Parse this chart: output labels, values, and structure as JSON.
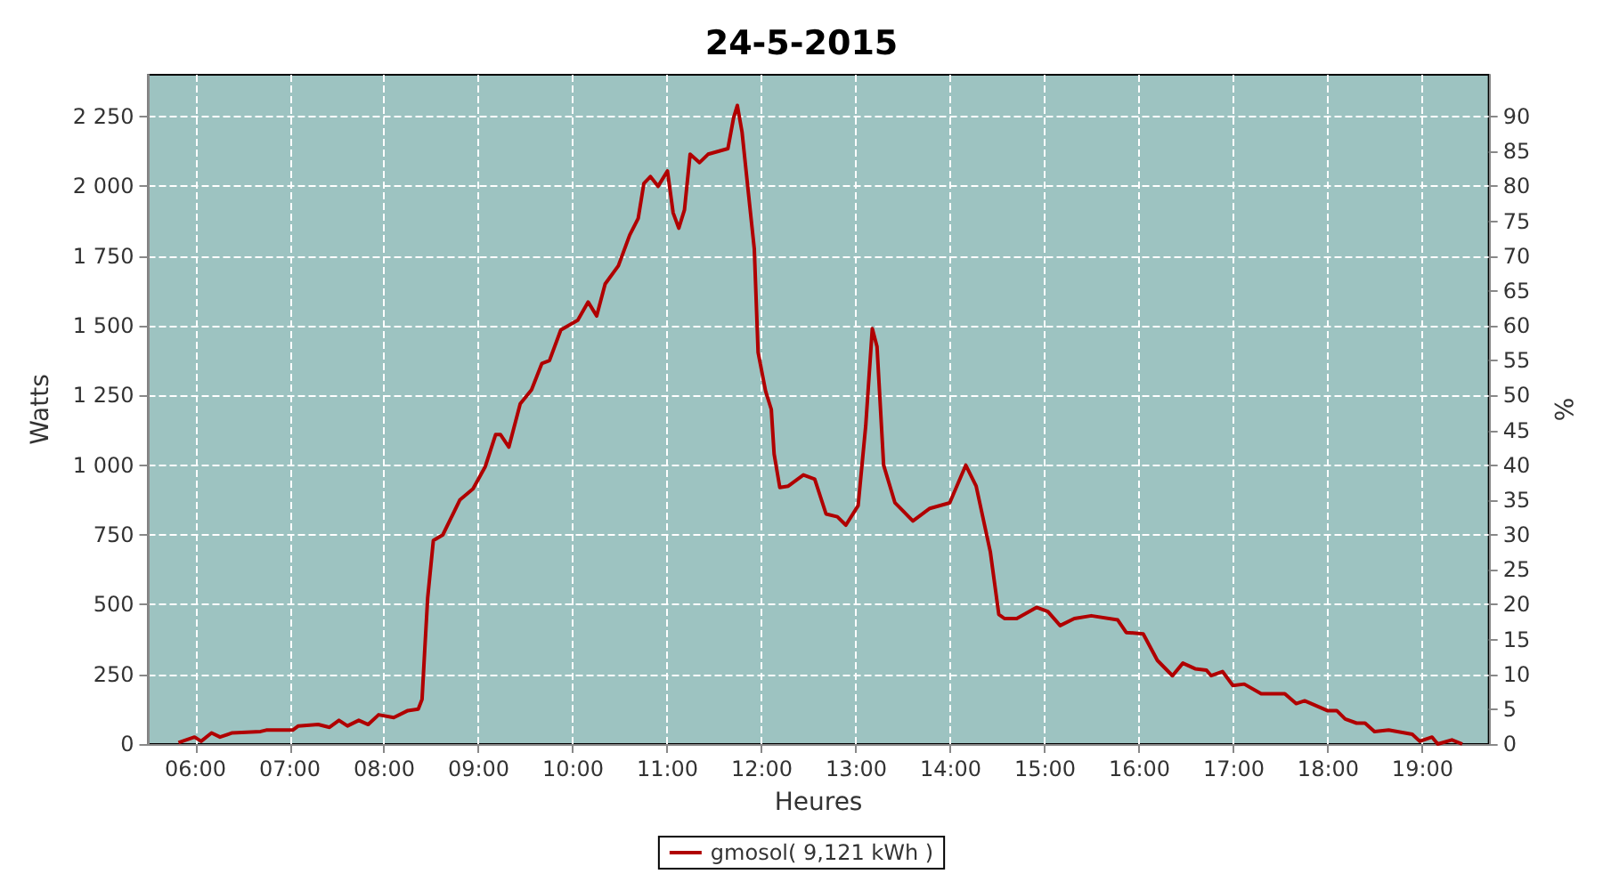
{
  "chart_data": {
    "type": "line",
    "title": "24-5-2015",
    "xlabel": "Heures",
    "ylabel": "Watts",
    "y2label": "%",
    "x": [
      5.82,
      5.99,
      6.06,
      6.17,
      6.26,
      6.39,
      6.69,
      6.75,
      7.03,
      7.09,
      7.3,
      7.42,
      7.52,
      7.61,
      7.73,
      7.83,
      7.94,
      8.1,
      8.25,
      8.36,
      8.4,
      8.43,
      8.46,
      8.52,
      8.62,
      8.8,
      8.94,
      9.07,
      9.18,
      9.23,
      9.32,
      9.44,
      9.56,
      9.67,
      9.75,
      9.87,
      10.05,
      10.16,
      10.25,
      10.34,
      10.48,
      10.6,
      10.69,
      10.75,
      10.82,
      10.9,
      11.0,
      11.06,
      11.12,
      11.18,
      11.24,
      11.34,
      11.43,
      11.64,
      11.7,
      11.74,
      11.79,
      11.85,
      11.92,
      11.96,
      12.04,
      12.1,
      12.13,
      12.19,
      12.28,
      12.44,
      12.56,
      12.68,
      12.8,
      12.89,
      13.02,
      13.1,
      13.17,
      13.22,
      13.29,
      13.41,
      13.6,
      13.78,
      13.99,
      14.16,
      14.27,
      14.42,
      14.51,
      14.57,
      14.7,
      14.91,
      15.03,
      15.16,
      15.31,
      15.49,
      15.77,
      15.86,
      16.04,
      16.19,
      16.35,
      16.46,
      16.59,
      16.71,
      16.76,
      16.88,
      16.99,
      17.11,
      17.29,
      17.54,
      17.66,
      17.75,
      17.99,
      18.09,
      18.18,
      18.3,
      18.39,
      18.49,
      18.64,
      18.89,
      18.97,
      19.1,
      19.16,
      19.31,
      19.42
    ],
    "series": [
      {
        "name": "gmosol( 9,121 kWh )",
        "color": "#b00000",
        "values": [
          5,
          25,
          10,
          40,
          25,
          40,
          45,
          50,
          50,
          65,
          70,
          60,
          85,
          65,
          85,
          70,
          105,
          95,
          120,
          125,
          160,
          345,
          525,
          730,
          750,
          875,
          915,
          995,
          1110,
          1110,
          1065,
          1220,
          1270,
          1365,
          1375,
          1485,
          1520,
          1585,
          1535,
          1650,
          1715,
          1825,
          1885,
          2010,
          2035,
          2000,
          2055,
          1905,
          1850,
          1915,
          2115,
          2085,
          2115,
          2135,
          2245,
          2290,
          2195,
          2000,
          1775,
          1405,
          1265,
          1200,
          1040,
          920,
          925,
          965,
          950,
          825,
          815,
          785,
          855,
          1140,
          1490,
          1425,
          1000,
          865,
          800,
          845,
          865,
          1000,
          925,
          690,
          465,
          450,
          450,
          490,
          475,
          425,
          450,
          460,
          445,
          400,
          395,
          300,
          245,
          290,
          270,
          265,
          245,
          260,
          210,
          215,
          180,
          180,
          145,
          155,
          120,
          120,
          90,
          75,
          75,
          45,
          50,
          35,
          10,
          25,
          0,
          15,
          0
        ]
      }
    ],
    "xlim": [
      5.5,
      19.7
    ],
    "xticks": [
      {
        "value": 6,
        "label": "06:00"
      },
      {
        "value": 7,
        "label": "07:00"
      },
      {
        "value": 8,
        "label": "08:00"
      },
      {
        "value": 9,
        "label": "09:00"
      },
      {
        "value": 10,
        "label": "10:00"
      },
      {
        "value": 11,
        "label": "11:00"
      },
      {
        "value": 12,
        "label": "12:00"
      },
      {
        "value": 13,
        "label": "13:00"
      },
      {
        "value": 14,
        "label": "14:00"
      },
      {
        "value": 15,
        "label": "15:00"
      },
      {
        "value": 16,
        "label": "16:00"
      },
      {
        "value": 17,
        "label": "17:00"
      },
      {
        "value": 18,
        "label": "18:00"
      },
      {
        "value": 19,
        "label": "19:00"
      }
    ],
    "ylim": [
      0,
      2400
    ],
    "yticks": [
      0,
      250,
      500,
      750,
      {
        "value": 1000,
        "label": "1 000"
      },
      {
        "value": 1250,
        "label": "1 250"
      },
      {
        "value": 1500,
        "label": "1 500"
      },
      {
        "value": 1750,
        "label": "1 750"
      },
      {
        "value": 2000,
        "label": "2 000"
      },
      {
        "value": 2250,
        "label": "2 250"
      }
    ],
    "y2lim": [
      0,
      96
    ],
    "y2ticks": [
      0,
      5,
      10,
      15,
      20,
      25,
      30,
      35,
      40,
      45,
      50,
      55,
      60,
      65,
      70,
      75,
      80,
      85,
      90
    ],
    "grid": true,
    "legend": "bottom",
    "marker": "none",
    "line_style": "solid"
  }
}
